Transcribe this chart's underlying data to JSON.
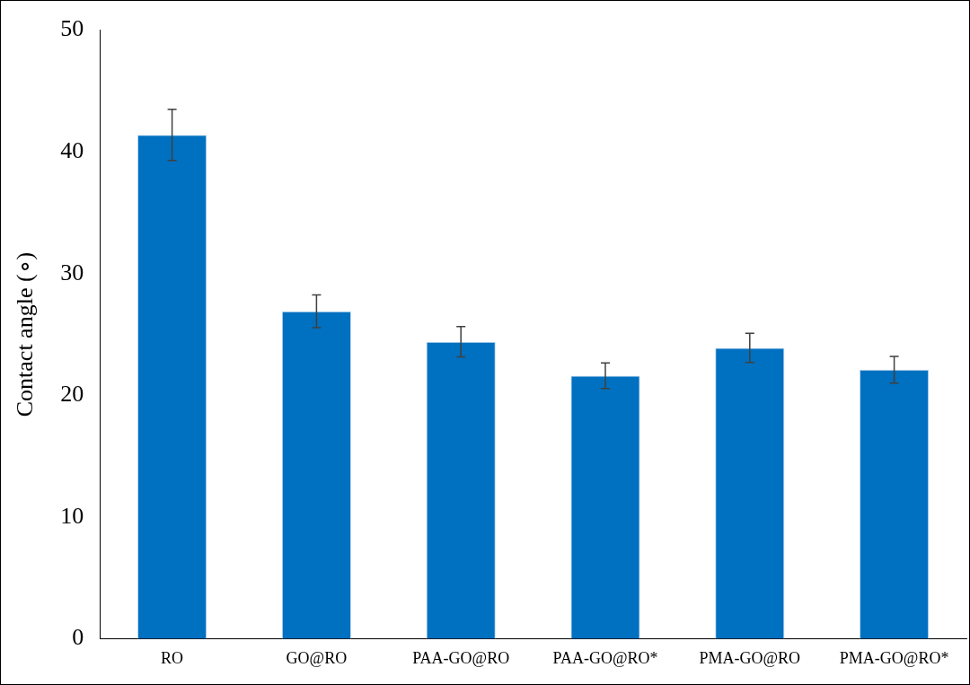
{
  "chart_data": {
    "type": "bar",
    "ylabel": "Contact angle (∘)",
    "categories": [
      "RO",
      "GO@RO",
      "PAA-GO@RO",
      "PAA-GO@RO*",
      "PMA-GO@RO",
      "PMA-GO@RO*"
    ],
    "values": [
      41.4,
      26.9,
      24.4,
      21.6,
      23.9,
      22.1
    ],
    "errors": [
      2.1,
      1.35,
      1.25,
      1.05,
      1.2,
      1.1
    ],
    "color": "#0070c0",
    "ylim": [
      0,
      50
    ],
    "yticks": [
      0,
      10,
      20,
      30,
      40,
      50
    ],
    "grid": false,
    "legend": false
  }
}
